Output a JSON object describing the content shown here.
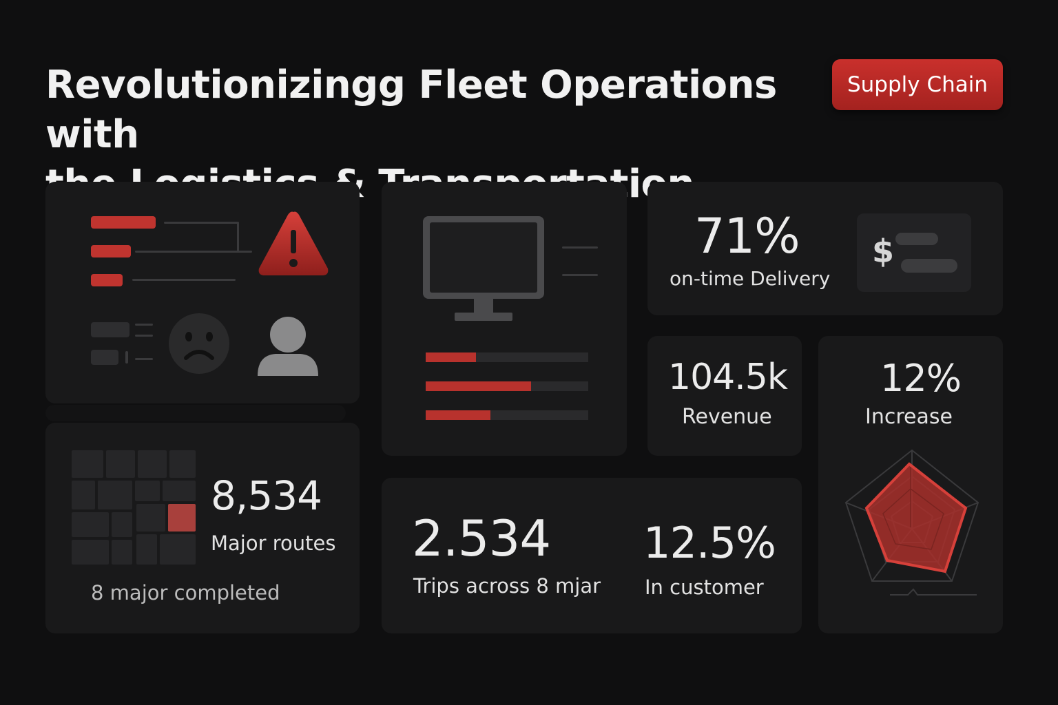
{
  "header": {
    "title_line1": "Revolutionizingg Fleet Operations with",
    "title_line2": "the Logistics & Transportation Dashboard",
    "tag_label": "Supply Chain"
  },
  "routes_card": {
    "value": "8,534",
    "label": "Major routes",
    "footer": "8 major completed"
  },
  "ontime_card": {
    "value": "71%",
    "label": "on-time Delivery",
    "currency_symbol": "$"
  },
  "revenue_card": {
    "value": "104.5k",
    "label": "Revenue"
  },
  "increase_card": {
    "value": "12%",
    "label": "Increase"
  },
  "trips_card": {
    "trips_value": "2.534",
    "trips_label": "Trips across 8 mjar",
    "customer_value": "12.5%",
    "customer_label": "In customer"
  },
  "monitor_card": {
    "progress": [
      0.31,
      0.65,
      0.4
    ]
  },
  "colors": {
    "accent": "#c0342f",
    "background": "#0f0f10",
    "card": "#19191a"
  },
  "icons": [
    "warning-icon",
    "sad-face-icon",
    "user-icon",
    "monitor-icon",
    "dollar-icon",
    "radar-chart"
  ]
}
